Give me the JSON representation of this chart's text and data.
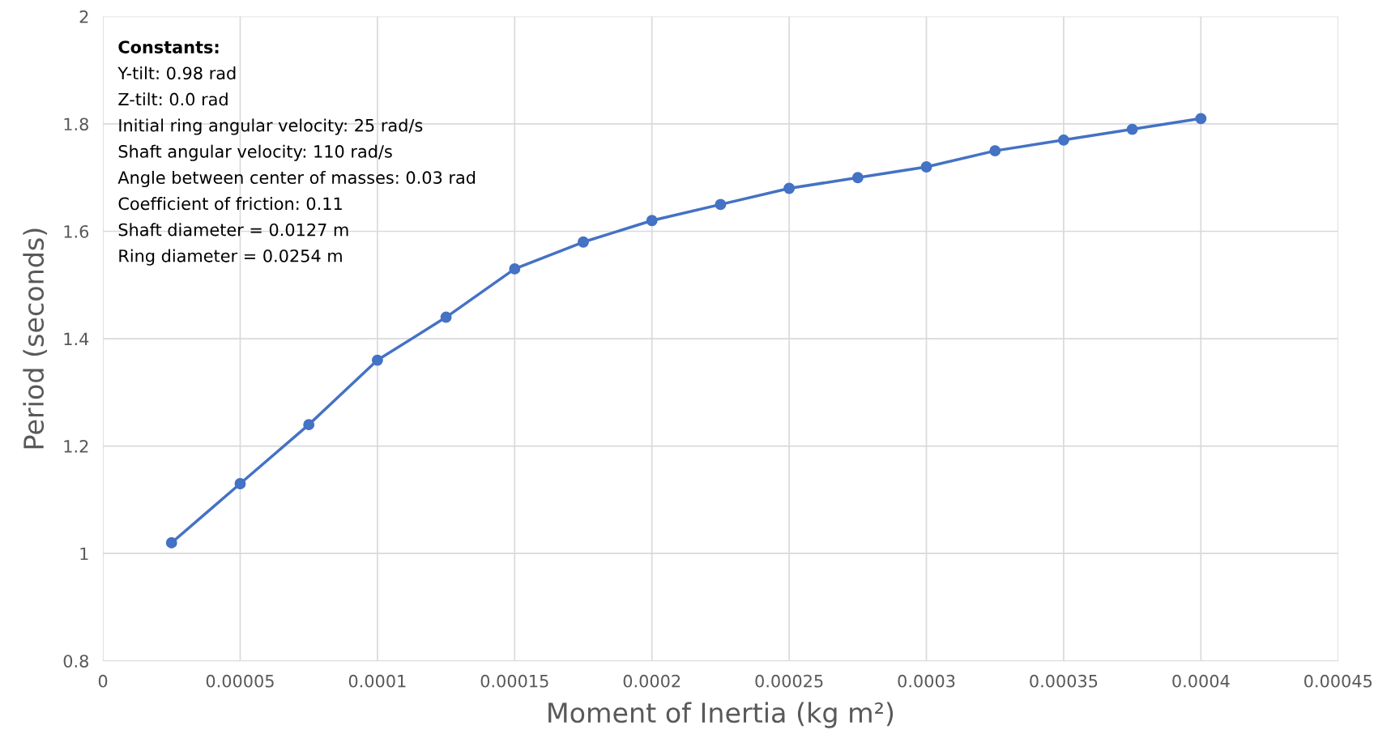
{
  "chart_data": {
    "type": "line",
    "xlabel": "Moment of Inertia (kg m²)",
    "ylabel": "Period (seconds)",
    "x": [
      2.5e-05,
      5e-05,
      7.5e-05,
      0.0001,
      0.000125,
      0.00015,
      0.000175,
      0.0002,
      0.000225,
      0.00025,
      0.000275,
      0.0003,
      0.000325,
      0.00035,
      0.000375,
      0.0004
    ],
    "series": [
      {
        "color": "#4472c4",
        "values": [
          1.02,
          1.13,
          1.24,
          1.36,
          1.44,
          1.53,
          1.58,
          1.62,
          1.65,
          1.68,
          1.7,
          1.72,
          1.75,
          1.77,
          1.79,
          1.81
        ]
      }
    ],
    "xlim": [
      0,
      0.00045
    ],
    "xticks": [
      0,
      {
        "value": 5e-05,
        "label": "0.00005"
      },
      {
        "value": 0.0001,
        "label": "0.0001"
      },
      {
        "value": 0.00015,
        "label": "0.00015"
      },
      {
        "value": 0.0002,
        "label": "0.0002"
      },
      {
        "value": 0.00025,
        "label": "0.00025"
      },
      {
        "value": 0.0003,
        "label": "0.0003"
      },
      {
        "value": 0.00035,
        "label": "0.00035"
      },
      {
        "value": 0.0004,
        "label": "0.0004"
      },
      {
        "value": 0.00045,
        "label": "0.00045"
      }
    ],
    "ylim": [
      0.8,
      2
    ],
    "yticks": [
      0.8,
      1,
      1.2,
      1.4,
      1.6,
      1.8,
      2
    ],
    "grid": true,
    "marker": "circle",
    "line_style": "solid",
    "legend": false,
    "annotations": [
      "Constants:",
      "Y-tilt: 0.98 rad",
      "Z-tilt: 0.0 rad",
      "Initial ring angular velocity: 25 rad/s",
      "Shaft angular velocity: 110 rad/s",
      "Angle between center of masses: 0.03 rad",
      "Coefficient of friction: 0.11",
      "Shaft diameter = 0.0127 m",
      "Ring diameter = 0.0254 m"
    ]
  }
}
